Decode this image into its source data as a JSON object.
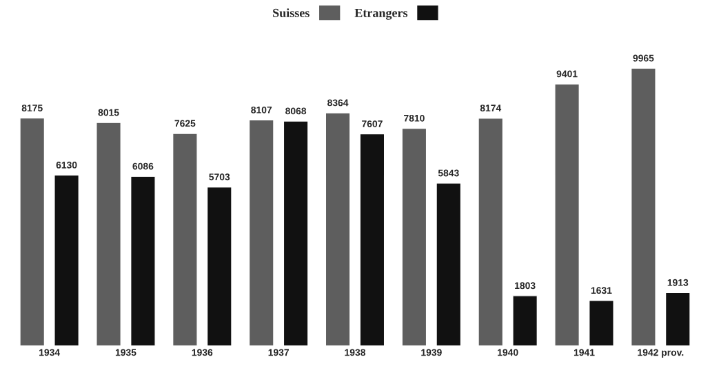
{
  "chart_data": {
    "type": "bar",
    "categories": [
      "1934",
      "1935",
      "1936",
      "1937",
      "1938",
      "1939",
      "1940",
      "1941",
      "1942 prov."
    ],
    "series": [
      {
        "name": "Suisses",
        "color": "#5e5e5e",
        "values": [
          8175,
          8015,
          7625,
          8107,
          8364,
          7810,
          8174,
          9401,
          9965
        ]
      },
      {
        "name": "Etrangers",
        "color": "#111111",
        "values": [
          6130,
          6086,
          5703,
          8068,
          7607,
          5843,
          1803,
          1631,
          1913
        ]
      }
    ],
    "data_labels": true,
    "legend": "top",
    "grid": false
  }
}
